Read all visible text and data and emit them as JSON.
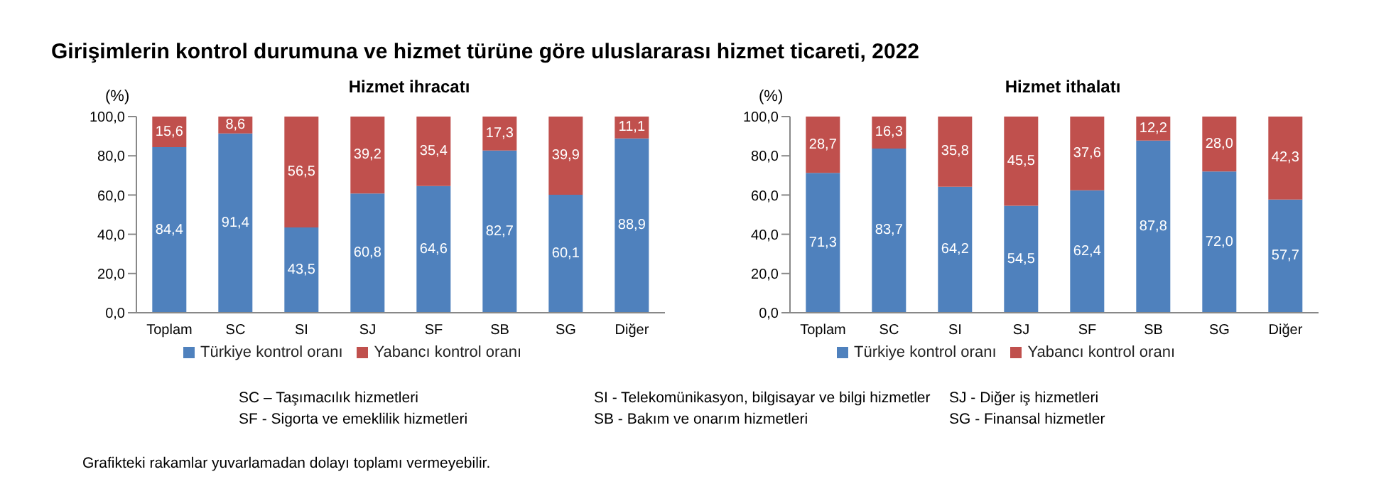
{
  "chart_data": [
    {
      "type": "bar",
      "title": "Girişimlerin kontrol durumuna ve hizmet türüne göre uluslararası hizmet ticareti, 2022",
      "subtitle": "Hizmet ihracatı",
      "ylabel": "(%)",
      "stacked": true,
      "legend": "bottom",
      "categories": [
        "Toplam",
        "SC",
        "SI",
        "SJ",
        "SF",
        "SB",
        "SG",
        "Diğer"
      ],
      "series": [
        {
          "name": "Türkiye kontrol oranı",
          "color": "#4f81bd",
          "values": [
            84.4,
            91.4,
            43.5,
            60.8,
            64.6,
            82.7,
            60.1,
            88.9
          ],
          "value_labels": [
            "84,4",
            "91,4",
            "43,5",
            "60,8",
            "64,6",
            "82,7",
            "60,1",
            "88,9"
          ]
        },
        {
          "name": "Yabancı kontrol oranı",
          "color": "#c0504d",
          "values": [
            15.6,
            8.6,
            56.5,
            39.2,
            35.4,
            17.3,
            39.9,
            11.1
          ],
          "value_labels": [
            "15,6",
            "8,6",
            "56,5",
            "39,2",
            "35,4",
            "17,3",
            "39,9",
            "11,1"
          ]
        }
      ],
      "ylim": [
        0,
        100
      ],
      "yticks": [
        {
          "value": 0,
          "label": "0,0"
        },
        {
          "value": 20,
          "label": "20,0"
        },
        {
          "value": 40,
          "label": "40,0"
        },
        {
          "value": 60,
          "label": "60,0"
        },
        {
          "value": 80,
          "label": "80,0"
        },
        {
          "value": 100,
          "label": "100,0"
        }
      ],
      "grid": false,
      "annotations": [
        "SC – Taşımacılık hizmetleri",
        "SI - Telekomünikasyon, bilgisayar ve bilgi hizmetler",
        "SJ - Diğer iş hizmetleri",
        "SF - Sigorta ve emeklilik hizmetleri",
        "SB - Bakım ve onarım hizmetleri",
        "SG - Finansal hizmetler",
        "Grafikteki rakamlar yuvarlamadan dolayı toplamı vermeyebilir."
      ]
    },
    {
      "type": "bar",
      "subtitle": "Hizmet ithalatı",
      "ylabel": "(%)",
      "stacked": true,
      "legend": "bottom",
      "categories": [
        "Toplam",
        "SC",
        "SI",
        "SJ",
        "SF",
        "SB",
        "SG",
        "Diğer"
      ],
      "series": [
        {
          "name": "Türkiye kontrol oranı",
          "color": "#4f81bd",
          "values": [
            71.3,
            83.7,
            64.2,
            54.5,
            62.4,
            87.8,
            72.0,
            57.7
          ],
          "value_labels": [
            "71,3",
            "83,7",
            "64,2",
            "54,5",
            "62,4",
            "87,8",
            "72,0",
            "57,7"
          ]
        },
        {
          "name": "Yabancı kontrol oranı",
          "color": "#c0504d",
          "values": [
            28.7,
            16.3,
            35.8,
            45.5,
            37.6,
            12.2,
            28.0,
            42.3
          ],
          "value_labels": [
            "28,7",
            "16,3",
            "35,8",
            "45,5",
            "37,6",
            "12,2",
            "28,0",
            "42,3"
          ]
        }
      ],
      "ylim": [
        0,
        100
      ],
      "yticks": [
        {
          "value": 0,
          "label": "0,0"
        },
        {
          "value": 20,
          "label": "20,0"
        },
        {
          "value": 40,
          "label": "40,0"
        },
        {
          "value": 60,
          "label": "60,0"
        },
        {
          "value": 80,
          "label": "80,0"
        },
        {
          "value": 100,
          "label": "100,0"
        }
      ],
      "grid": false
    }
  ]
}
